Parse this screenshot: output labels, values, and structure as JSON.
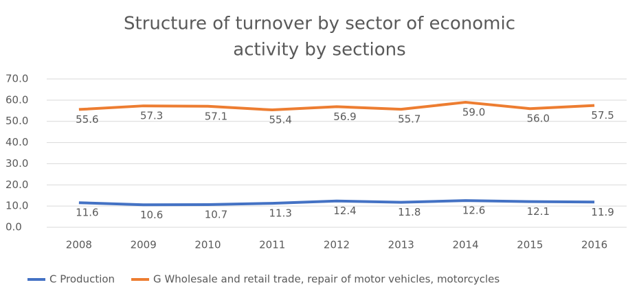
{
  "chart_data": {
    "type": "line",
    "title": [
      "Structure  of  turnover by sector  of economic",
      "activity by sections"
    ],
    "categories": [
      "2008",
      "2009",
      "2010",
      "2011",
      "2012",
      "2013",
      "2014",
      "2015",
      "2016"
    ],
    "series": [
      {
        "name": "C Production",
        "color": "#4472c4",
        "values": [
          11.6,
          10.6,
          10.7,
          11.3,
          12.4,
          11.8,
          12.6,
          12.1,
          11.9
        ],
        "value_labels": [
          "11.6",
          "10.6",
          "10.7",
          "11.3",
          "12.4",
          "11.8",
          "12.6",
          "12.1",
          "11.9"
        ]
      },
      {
        "name": "G Wholesale and retail trade, repair of motor vehicles, motorcycles",
        "color": "#ed7d31",
        "values": [
          55.6,
          57.3,
          57.1,
          55.4,
          56.9,
          55.7,
          59.0,
          56.0,
          57.5
        ],
        "value_labels": [
          "55.6",
          "57.3",
          "57.1",
          "55.4",
          "56.9",
          "55.7",
          "59.0",
          "56.0",
          "57.5"
        ]
      }
    ],
    "ylim": [
      0,
      70
    ],
    "yticks": [
      {
        "value": 0,
        "label": "0.0"
      },
      {
        "value": 10,
        "label": "10.0"
      },
      {
        "value": 20,
        "label": "20.0"
      },
      {
        "value": 30,
        "label": "30.0"
      },
      {
        "value": 40,
        "label": "40.0"
      },
      {
        "value": 50,
        "label": "50.0"
      },
      {
        "value": 60,
        "label": "60.0"
      },
      {
        "value": 70,
        "label": "70.0"
      }
    ],
    "grid": true,
    "legend": "bottom"
  }
}
